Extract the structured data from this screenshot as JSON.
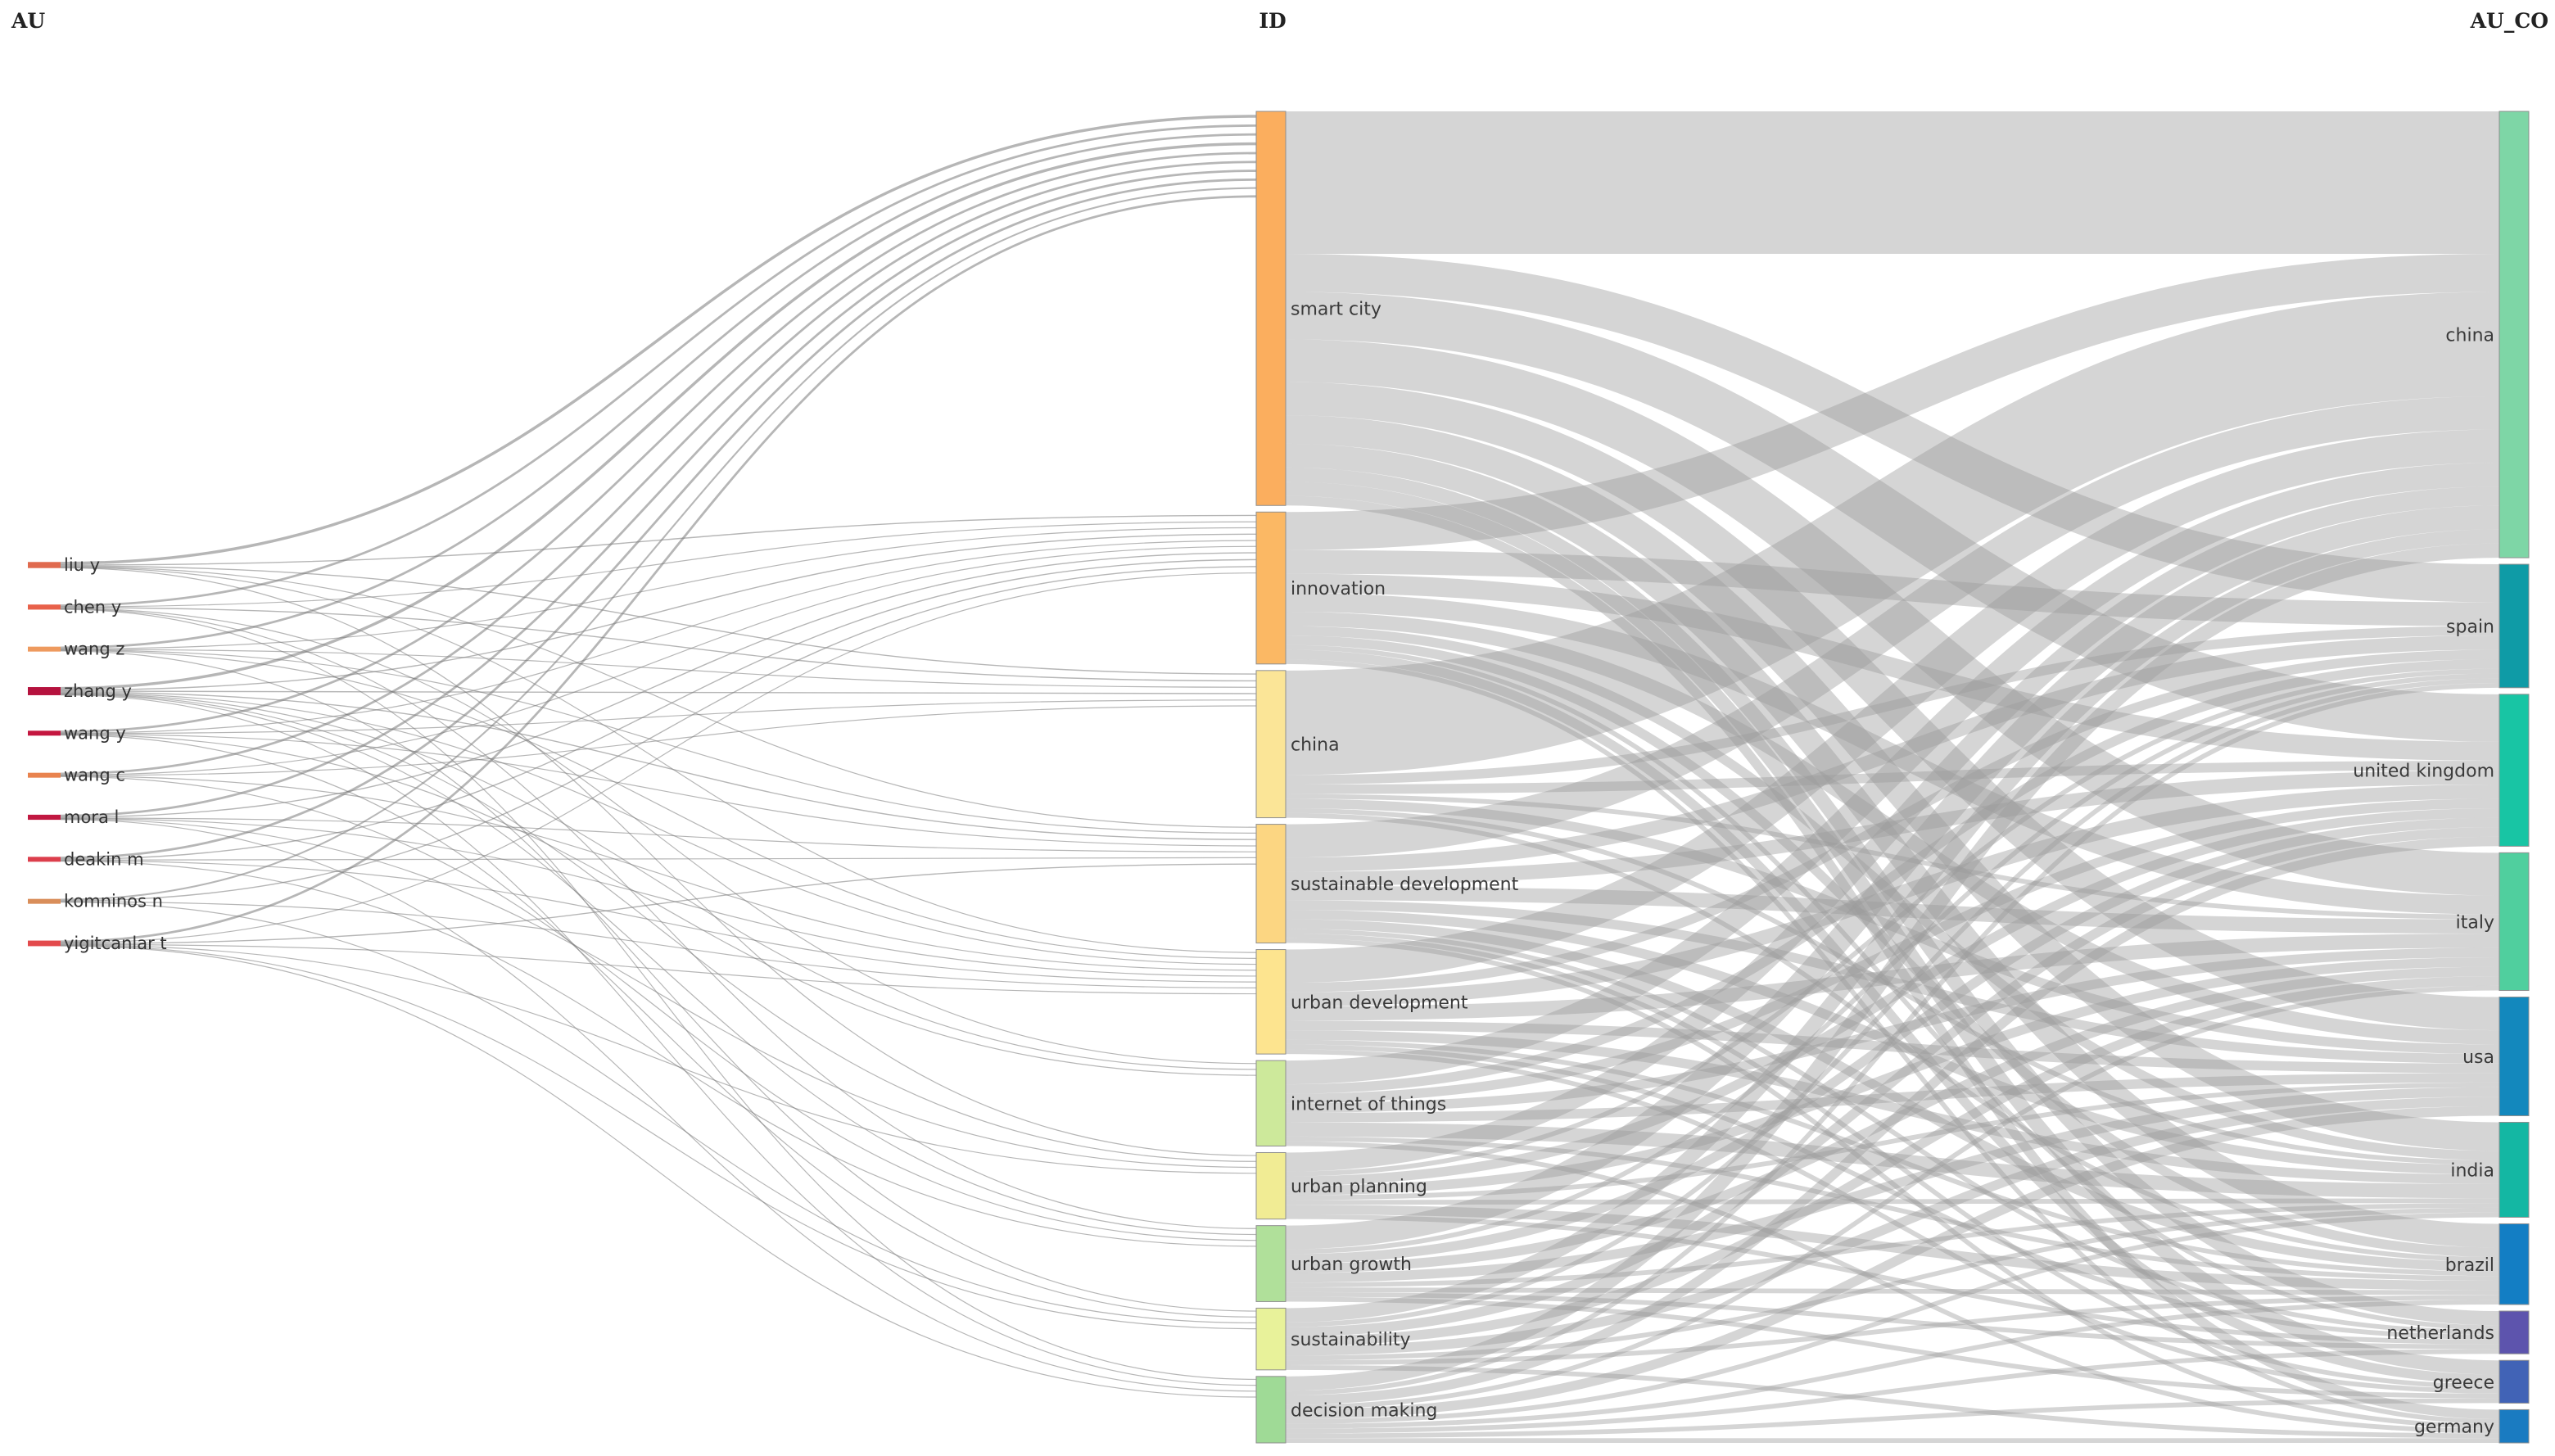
{
  "headers": {
    "au": "AU",
    "id": "ID",
    "au_co": "AU_CO"
  },
  "colors": {
    "link": "#9a9a9a"
  },
  "authors": [
    {
      "label": "liu y",
      "color": "#e06a4e"
    },
    {
      "label": "chen y",
      "color": "#e8614a"
    },
    {
      "label": "wang z",
      "color": "#ee9a5e"
    },
    {
      "label": "zhang y",
      "color": "#b5123e"
    },
    {
      "label": "wang y",
      "color": "#c4163f"
    },
    {
      "label": "wang c",
      "color": "#e9834e"
    },
    {
      "label": "mora l",
      "color": "#c11841"
    },
    {
      "label": "deakin m",
      "color": "#dc3e4c"
    },
    {
      "label": "komninos n",
      "color": "#d98e5a"
    },
    {
      "label": "yigitcanlar t",
      "color": "#e34a4c"
    }
  ],
  "keywords": [
    {
      "label": "smart city",
      "color": "#fbae5e"
    },
    {
      "label": "innovation",
      "color": "#fbb864"
    },
    {
      "label": "china",
      "color": "#fbe597"
    },
    {
      "label": "sustainable development",
      "color": "#fcd682"
    },
    {
      "label": "urban development",
      "color": "#fde48f"
    },
    {
      "label": "internet of things",
      "color": "#cde99b"
    },
    {
      "label": "urban planning",
      "color": "#f1ec94"
    },
    {
      "label": "urban growth",
      "color": "#b0e09a"
    },
    {
      "label": "sustainability",
      "color": "#e8f29a"
    },
    {
      "label": "decision making",
      "color": "#9fda96"
    }
  ],
  "countries": [
    {
      "label": "china",
      "color": "#7ed6a6"
    },
    {
      "label": "spain",
      "color": "#0f9ba6"
    },
    {
      "label": "united kingdom",
      "color": "#18c5a4"
    },
    {
      "label": "italy",
      "color": "#50cf9e"
    },
    {
      "label": "usa",
      "color": "#1388bd"
    },
    {
      "label": "india",
      "color": "#14b7a3"
    },
    {
      "label": "brazil",
      "color": "#137ec4"
    },
    {
      "label": "netherlands",
      "color": "#5d54ad"
    },
    {
      "label": "greece",
      "color": "#4163b6"
    },
    {
      "label": "germany",
      "color": "#1a7bc1"
    }
  ],
  "links_au_id": [
    {
      "source": "liu y",
      "target": "smart city",
      "value": 5
    },
    {
      "source": "liu y",
      "target": "innovation",
      "value": 2
    },
    {
      "source": "liu y",
      "target": "china",
      "value": 2
    },
    {
      "source": "liu y",
      "target": "sustainable development",
      "value": 1
    },
    {
      "source": "liu y",
      "target": "urban development",
      "value": 1
    },
    {
      "source": "liu y",
      "target": "urban planning",
      "value": 1
    },
    {
      "source": "chen y",
      "target": "smart city",
      "value": 4
    },
    {
      "source": "chen y",
      "target": "innovation",
      "value": 1
    },
    {
      "source": "chen y",
      "target": "china",
      "value": 2
    },
    {
      "source": "chen y",
      "target": "internet of things",
      "value": 1
    },
    {
      "source": "chen y",
      "target": "urban growth",
      "value": 1
    },
    {
      "source": "chen y",
      "target": "decision making",
      "value": 1
    },
    {
      "source": "wang z",
      "target": "smart city",
      "value": 4
    },
    {
      "source": "wang z",
      "target": "innovation",
      "value": 1
    },
    {
      "source": "wang z",
      "target": "china",
      "value": 1
    },
    {
      "source": "wang z",
      "target": "sustainable development",
      "value": 1
    },
    {
      "source": "wang z",
      "target": "urban development",
      "value": 1
    },
    {
      "source": "wang z",
      "target": "sustainability",
      "value": 1
    },
    {
      "source": "zhang y",
      "target": "smart city",
      "value": 5
    },
    {
      "source": "zhang y",
      "target": "innovation",
      "value": 2
    },
    {
      "source": "zhang y",
      "target": "china",
      "value": 2
    },
    {
      "source": "zhang y",
      "target": "sustainable development",
      "value": 2
    },
    {
      "source": "zhang y",
      "target": "urban development",
      "value": 1
    },
    {
      "source": "zhang y",
      "target": "internet of things",
      "value": 1
    },
    {
      "source": "zhang y",
      "target": "urban planning",
      "value": 1
    },
    {
      "source": "zhang y",
      "target": "urban growth",
      "value": 1
    },
    {
      "source": "zhang y",
      "target": "decision making",
      "value": 1
    },
    {
      "source": "wang y",
      "target": "smart city",
      "value": 4
    },
    {
      "source": "wang y",
      "target": "innovation",
      "value": 1
    },
    {
      "source": "wang y",
      "target": "china",
      "value": 1
    },
    {
      "source": "wang y",
      "target": "sustainable development",
      "value": 1
    },
    {
      "source": "wang y",
      "target": "internet of things",
      "value": 1
    },
    {
      "source": "wang y",
      "target": "sustainability",
      "value": 1
    },
    {
      "source": "wang c",
      "target": "smart city",
      "value": 4
    },
    {
      "source": "wang c",
      "target": "innovation",
      "value": 1
    },
    {
      "source": "wang c",
      "target": "china",
      "value": 1
    },
    {
      "source": "wang c",
      "target": "urban development",
      "value": 1
    },
    {
      "source": "wang c",
      "target": "urban growth",
      "value": 1
    },
    {
      "source": "mora l",
      "target": "smart city",
      "value": 4
    },
    {
      "source": "mora l",
      "target": "innovation",
      "value": 2
    },
    {
      "source": "mora l",
      "target": "sustainable development",
      "value": 1
    },
    {
      "source": "mora l",
      "target": "urban development",
      "value": 1
    },
    {
      "source": "mora l",
      "target": "urban planning",
      "value": 1
    },
    {
      "source": "mora l",
      "target": "decision making",
      "value": 1
    },
    {
      "source": "deakin m",
      "target": "smart city",
      "value": 4
    },
    {
      "source": "deakin m",
      "target": "innovation",
      "value": 2
    },
    {
      "source": "deakin m",
      "target": "sustainable development",
      "value": 1
    },
    {
      "source": "deakin m",
      "target": "urban development",
      "value": 1
    },
    {
      "source": "deakin m",
      "target": "urban growth",
      "value": 1
    },
    {
      "source": "komninos n",
      "target": "smart city",
      "value": 3
    },
    {
      "source": "komninos n",
      "target": "innovation",
      "value": 2
    },
    {
      "source": "komninos n",
      "target": "urban development",
      "value": 1
    },
    {
      "source": "komninos n",
      "target": "sustainability",
      "value": 1
    },
    {
      "source": "yigitcanlar t",
      "target": "smart city",
      "value": 4
    },
    {
      "source": "yigitcanlar t",
      "target": "innovation",
      "value": 1
    },
    {
      "source": "yigitcanlar t",
      "target": "sustainable development",
      "value": 2
    },
    {
      "source": "yigitcanlar t",
      "target": "urban development",
      "value": 1
    },
    {
      "source": "yigitcanlar t",
      "target": "urban planning",
      "value": 1
    },
    {
      "source": "yigitcanlar t",
      "target": "sustainability",
      "value": 1
    },
    {
      "source": "yigitcanlar t",
      "target": "decision making",
      "value": 1
    }
  ],
  "links_id_co": [
    {
      "source": "smart city",
      "target": "china",
      "value": 30
    },
    {
      "source": "smart city",
      "target": "spain",
      "value": 8
    },
    {
      "source": "smart city",
      "target": "united kingdom",
      "value": 10
    },
    {
      "source": "smart city",
      "target": "italy",
      "value": 9
    },
    {
      "source": "smart city",
      "target": "usa",
      "value": 7
    },
    {
      "source": "smart city",
      "target": "india",
      "value": 6
    },
    {
      "source": "smart city",
      "target": "brazil",
      "value": 5
    },
    {
      "source": "smart city",
      "target": "netherlands",
      "value": 3
    },
    {
      "source": "smart city",
      "target": "greece",
      "value": 3
    },
    {
      "source": "smart city",
      "target": "germany",
      "value": 2
    },
    {
      "source": "innovation",
      "target": "china",
      "value": 8
    },
    {
      "source": "innovation",
      "target": "spain",
      "value": 5
    },
    {
      "source": "innovation",
      "target": "united kingdom",
      "value": 4
    },
    {
      "source": "innovation",
      "target": "italy",
      "value": 4
    },
    {
      "source": "innovation",
      "target": "usa",
      "value": 3
    },
    {
      "source": "innovation",
      "target": "india",
      "value": 2
    },
    {
      "source": "innovation",
      "target": "brazil",
      "value": 2
    },
    {
      "source": "innovation",
      "target": "netherlands",
      "value": 1
    },
    {
      "source": "innovation",
      "target": "greece",
      "value": 2
    },
    {
      "source": "innovation",
      "target": "germany",
      "value": 1
    },
    {
      "source": "china",
      "target": "china",
      "value": 22
    },
    {
      "source": "china",
      "target": "spain",
      "value": 2
    },
    {
      "source": "china",
      "target": "united kingdom",
      "value": 2
    },
    {
      "source": "china",
      "target": "italy",
      "value": 1
    },
    {
      "source": "china",
      "target": "usa",
      "value": 2
    },
    {
      "source": "china",
      "target": "india",
      "value": 1
    },
    {
      "source": "china",
      "target": "brazil",
      "value": 1
    },
    {
      "source": "sustainable development",
      "target": "china",
      "value": 7
    },
    {
      "source": "sustainable development",
      "target": "spain",
      "value": 3
    },
    {
      "source": "sustainable development",
      "target": "united kingdom",
      "value": 3
    },
    {
      "source": "sustainable development",
      "target": "italy",
      "value": 3
    },
    {
      "source": "sustainable development",
      "target": "usa",
      "value": 2
    },
    {
      "source": "sustainable development",
      "target": "india",
      "value": 2
    },
    {
      "source": "sustainable development",
      "target": "brazil",
      "value": 2
    },
    {
      "source": "sustainable development",
      "target": "netherlands",
      "value": 1
    },
    {
      "source": "sustainable development",
      "target": "greece",
      "value": 1
    },
    {
      "source": "sustainable development",
      "target": "germany",
      "value": 1
    },
    {
      "source": "urban development",
      "target": "china",
      "value": 7
    },
    {
      "source": "urban development",
      "target": "spain",
      "value": 2
    },
    {
      "source": "urban development",
      "target": "united kingdom",
      "value": 3
    },
    {
      "source": "urban development",
      "target": "italy",
      "value": 3
    },
    {
      "source": "urban development",
      "target": "usa",
      "value": 2
    },
    {
      "source": "urban development",
      "target": "india",
      "value": 2
    },
    {
      "source": "urban development",
      "target": "brazil",
      "value": 1
    },
    {
      "source": "urban development",
      "target": "netherlands",
      "value": 1
    },
    {
      "source": "urban development",
      "target": "greece",
      "value": 1
    },
    {
      "source": "internet of things",
      "target": "china",
      "value": 5
    },
    {
      "source": "internet of things",
      "target": "spain",
      "value": 2
    },
    {
      "source": "internet of things",
      "target": "united kingdom",
      "value": 2
    },
    {
      "source": "internet of things",
      "target": "italy",
      "value": 2
    },
    {
      "source": "internet of things",
      "target": "usa",
      "value": 2
    },
    {
      "source": "internet of things",
      "target": "india",
      "value": 3
    },
    {
      "source": "internet of things",
      "target": "brazil",
      "value": 1
    },
    {
      "source": "internet of things",
      "target": "germany",
      "value": 1
    },
    {
      "source": "urban planning",
      "target": "china",
      "value": 4
    },
    {
      "source": "urban planning",
      "target": "spain",
      "value": 1
    },
    {
      "source": "urban planning",
      "target": "united kingdom",
      "value": 2
    },
    {
      "source": "urban planning",
      "target": "italy",
      "value": 2
    },
    {
      "source": "urban planning",
      "target": "usa",
      "value": 1
    },
    {
      "source": "urban planning",
      "target": "india",
      "value": 1
    },
    {
      "source": "urban planning",
      "target": "brazil",
      "value": 2
    },
    {
      "source": "urban planning",
      "target": "netherlands",
      "value": 1
    },
    {
      "source": "urban growth",
      "target": "china",
      "value": 5
    },
    {
      "source": "urban growth",
      "target": "spain",
      "value": 1
    },
    {
      "source": "urban growth",
      "target": "united kingdom",
      "value": 2
    },
    {
      "source": "urban growth",
      "target": "italy",
      "value": 2
    },
    {
      "source": "urban growth",
      "target": "usa",
      "value": 2
    },
    {
      "source": "urban growth",
      "target": "india",
      "value": 1
    },
    {
      "source": "urban growth",
      "target": "brazil",
      "value": 1
    },
    {
      "source": "urban growth",
      "target": "netherlands",
      "value": 1
    },
    {
      "source": "urban growth",
      "target": "greece",
      "value": 1
    },
    {
      "source": "sustainability",
      "target": "china",
      "value": 3
    },
    {
      "source": "sustainability",
      "target": "spain",
      "value": 1
    },
    {
      "source": "sustainability",
      "target": "united kingdom",
      "value": 2
    },
    {
      "source": "sustainability",
      "target": "italy",
      "value": 2
    },
    {
      "source": "sustainability",
      "target": "usa",
      "value": 2
    },
    {
      "source": "sustainability",
      "target": "india",
      "value": 1
    },
    {
      "source": "sustainability",
      "target": "brazil",
      "value": 1
    },
    {
      "source": "sustainability",
      "target": "germany",
      "value": 1
    },
    {
      "source": "decision making",
      "target": "china",
      "value": 3
    },
    {
      "source": "decision making",
      "target": "spain",
      "value": 1
    },
    {
      "source": "decision making",
      "target": "united kingdom",
      "value": 2
    },
    {
      "source": "decision making",
      "target": "italy",
      "value": 1
    },
    {
      "source": "decision making",
      "target": "usa",
      "value": 2
    },
    {
      "source": "decision making",
      "target": "india",
      "value": 1
    },
    {
      "source": "decision making",
      "target": "brazil",
      "value": 1
    },
    {
      "source": "decision making",
      "target": "netherlands",
      "value": 1
    },
    {
      "source": "decision making",
      "target": "greece",
      "value": 1
    },
    {
      "source": "decision making",
      "target": "germany",
      "value": 1
    }
  ]
}
